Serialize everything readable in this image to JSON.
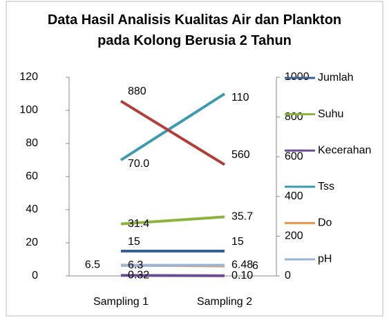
{
  "chart_data": {
    "type": "line",
    "title": "Data Hasil Analisis Kualitas Air dan Plankton pada Kolong Berusia 2 Tahun",
    "categories": [
      "Sampling 1",
      "Sampling 2"
    ],
    "ylim": [
      0,
      120
    ],
    "yticks": [
      0,
      20,
      40,
      60,
      80,
      100,
      120
    ],
    "y2lim": [
      0,
      1000
    ],
    "y2ticks": [
      0,
      200,
      400,
      600,
      800,
      1000
    ],
    "series": [
      {
        "name": "Jumlah",
        "color": "#3a5f93",
        "values": [
          15,
          15
        ]
      },
      {
        "name": "Suhu",
        "color": "#8db33f",
        "values": [
          31.4,
          35.7
        ]
      },
      {
        "name": "Kecerahan",
        "color": "#6a4c93",
        "values": [
          0.32,
          0.1
        ],
        "value_labels": [
          "0.32",
          "0.10"
        ]
      },
      {
        "name": "Tss",
        "color": "#3c9bb0",
        "values": [
          70,
          110
        ],
        "value_labels": [
          "70.0",
          "110"
        ]
      },
      {
        "name": "Do",
        "color": "#f0944a",
        "values": [
          6.5,
          6
        ]
      },
      {
        "name": "pH",
        "color": "#9bb4d6",
        "values": [
          6.3,
          6.48
        ]
      },
      {
        "color": "#b03f3c",
        "values": [
          880,
          560
        ],
        "axis": "y2"
      }
    ]
  }
}
